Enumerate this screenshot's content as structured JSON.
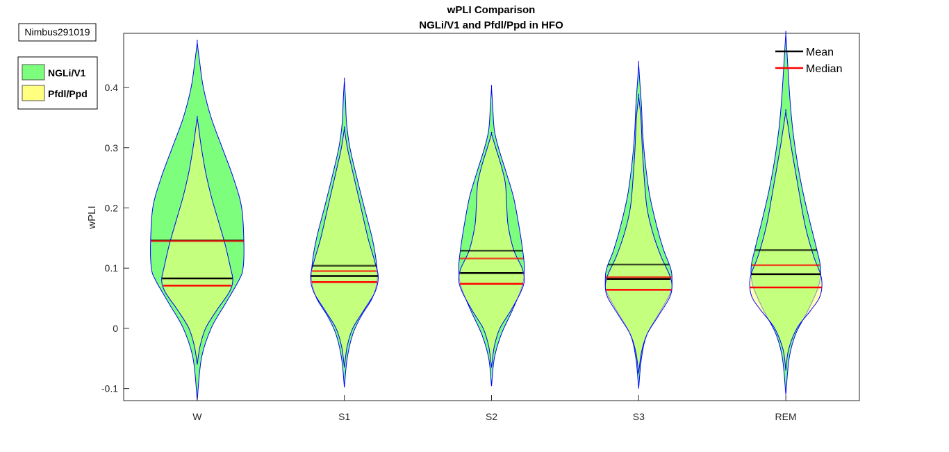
{
  "annotation": {
    "label": "Nimbus291019"
  },
  "group_legend": [
    {
      "label": "NGLi/V1",
      "color": "#7dff7d"
    },
    {
      "label": "Pfdl/Ppd",
      "color": "#ffff80"
    }
  ],
  "stat_legend": [
    {
      "label": "Mean",
      "color": "#000000"
    },
    {
      "label": "Median",
      "color": "#ff0000"
    }
  ],
  "chart_data": {
    "type": "violin",
    "title": "wPLI Comparison",
    "subtitle": "NGLi/V1 and Pfdl/Ppd in HFO",
    "xlabel": "",
    "ylabel": "wPLI",
    "ylim": [
      -0.12,
      0.49
    ],
    "yticks": [
      -0.1,
      0,
      0.1,
      0.2,
      0.3,
      0.4
    ],
    "ytick_labels": [
      "-0.1",
      "0",
      "0.1",
      "0.2",
      "0.3",
      "0.4"
    ],
    "categories": [
      "W",
      "S1",
      "S2",
      "S3",
      "REM"
    ],
    "series": [
      {
        "name": "NGLi/V1",
        "color": "#7dff7d",
        "outline": "#0000ff",
        "mean": [
          0.146,
          0.104,
          0.129,
          0.106,
          0.13
        ],
        "median": [
          0.145,
          0.095,
          0.116,
          0.085,
          0.105
        ],
        "y_range": [
          [
            -0.12,
            0.475
          ],
          [
            -0.098,
            0.412
          ],
          [
            -0.096,
            0.4
          ],
          [
            -0.1,
            0.44
          ],
          [
            -0.11,
            0.49
          ]
        ],
        "profile": [
          [
            [
              -0.12,
              0.0
            ],
            [
              -0.05,
              0.015
            ],
            [
              0.0,
              0.05
            ],
            [
              0.04,
              0.1
            ],
            [
              0.08,
              0.15
            ],
            [
              0.1,
              0.165
            ],
            [
              0.14,
              0.168
            ],
            [
              0.2,
              0.16
            ],
            [
              0.25,
              0.13
            ],
            [
              0.3,
              0.09
            ],
            [
              0.35,
              0.05
            ],
            [
              0.4,
              0.022
            ],
            [
              0.445,
              0.008
            ],
            [
              0.475,
              0.0
            ]
          ],
          [
            [
              -0.098,
              0.0
            ],
            [
              -0.05,
              0.01
            ],
            [
              -0.01,
              0.03
            ],
            [
              0.02,
              0.06
            ],
            [
              0.05,
              0.1
            ],
            [
              0.08,
              0.118
            ],
            [
              0.11,
              0.115
            ],
            [
              0.15,
              0.1
            ],
            [
              0.2,
              0.072
            ],
            [
              0.25,
              0.045
            ],
            [
              0.3,
              0.02
            ],
            [
              0.34,
              0.008
            ],
            [
              0.38,
              0.004
            ],
            [
              0.412,
              0.0
            ]
          ],
          [
            [
              -0.096,
              0.0
            ],
            [
              -0.05,
              0.01
            ],
            [
              -0.01,
              0.035
            ],
            [
              0.03,
              0.075
            ],
            [
              0.07,
              0.11
            ],
            [
              0.1,
              0.118
            ],
            [
              0.13,
              0.112
            ],
            [
              0.18,
              0.095
            ],
            [
              0.22,
              0.078
            ],
            [
              0.26,
              0.052
            ],
            [
              0.3,
              0.025
            ],
            [
              0.33,
              0.01
            ],
            [
              0.37,
              0.004
            ],
            [
              0.4,
              0.0
            ]
          ],
          [
            [
              -0.1,
              0.0
            ],
            [
              -0.05,
              0.01
            ],
            [
              -0.01,
              0.03
            ],
            [
              0.03,
              0.08
            ],
            [
              0.06,
              0.115
            ],
            [
              0.08,
              0.12
            ],
            [
              0.1,
              0.115
            ],
            [
              0.13,
              0.09
            ],
            [
              0.17,
              0.065
            ],
            [
              0.22,
              0.04
            ],
            [
              0.27,
              0.025
            ],
            [
              0.32,
              0.015
            ],
            [
              0.37,
              0.01
            ],
            [
              0.41,
              0.004
            ],
            [
              0.44,
              0.0
            ]
          ],
          [
            [
              -0.11,
              0.0
            ],
            [
              -0.05,
              0.012
            ],
            [
              -0.01,
              0.035
            ],
            [
              0.03,
              0.08
            ],
            [
              0.07,
              0.118
            ],
            [
              0.1,
              0.125
            ],
            [
              0.13,
              0.112
            ],
            [
              0.18,
              0.085
            ],
            [
              0.23,
              0.06
            ],
            [
              0.28,
              0.04
            ],
            [
              0.33,
              0.025
            ],
            [
              0.38,
              0.015
            ],
            [
              0.43,
              0.008
            ],
            [
              0.46,
              0.004
            ],
            [
              0.49,
              0.0
            ]
          ]
        ]
      },
      {
        "name": "Pfdl/Ppd",
        "color": "#ffff80",
        "outline": "#0000ff",
        "mean": [
          0.083,
          0.087,
          0.092,
          0.082,
          0.09
        ],
        "median": [
          0.071,
          0.077,
          0.074,
          0.064,
          0.068
        ],
        "y_range": [
          [
            -0.06,
            0.35
          ],
          [
            -0.065,
            0.332
          ],
          [
            -0.065,
            0.323
          ],
          [
            -0.075,
            0.385
          ],
          [
            -0.07,
            0.36
          ]
        ],
        "profile": [
          [
            [
              -0.06,
              0.0
            ],
            [
              -0.03,
              0.01
            ],
            [
              0.0,
              0.03
            ],
            [
              0.03,
              0.07
            ],
            [
              0.06,
              0.115
            ],
            [
              0.08,
              0.128
            ],
            [
              0.1,
              0.12
            ],
            [
              0.14,
              0.1
            ],
            [
              0.18,
              0.075
            ],
            [
              0.22,
              0.05
            ],
            [
              0.26,
              0.03
            ],
            [
              0.3,
              0.015
            ],
            [
              0.33,
              0.006
            ],
            [
              0.35,
              0.0
            ]
          ],
          [
            [
              -0.065,
              0.0
            ],
            [
              -0.03,
              0.01
            ],
            [
              0.0,
              0.03
            ],
            [
              0.03,
              0.07
            ],
            [
              0.06,
              0.11
            ],
            [
              0.085,
              0.122
            ],
            [
              0.11,
              0.11
            ],
            [
              0.15,
              0.085
            ],
            [
              0.2,
              0.06
            ],
            [
              0.25,
              0.035
            ],
            [
              0.29,
              0.015
            ],
            [
              0.31,
              0.007
            ],
            [
              0.332,
              0.0
            ]
          ],
          [
            [
              -0.065,
              0.0
            ],
            [
              -0.03,
              0.01
            ],
            [
              0.0,
              0.03
            ],
            [
              0.03,
              0.07
            ],
            [
              0.06,
              0.105
            ],
            [
              0.08,
              0.118
            ],
            [
              0.1,
              0.11
            ],
            [
              0.13,
              0.08
            ],
            [
              0.17,
              0.06
            ],
            [
              0.2,
              0.055
            ],
            [
              0.24,
              0.05
            ],
            [
              0.27,
              0.035
            ],
            [
              0.3,
              0.015
            ],
            [
              0.323,
              0.0
            ]
          ],
          [
            [
              -0.075,
              0.0
            ],
            [
              -0.04,
              0.01
            ],
            [
              -0.01,
              0.03
            ],
            [
              0.02,
              0.07
            ],
            [
              0.05,
              0.11
            ],
            [
              0.07,
              0.12
            ],
            [
              0.09,
              0.11
            ],
            [
              0.12,
              0.08
            ],
            [
              0.16,
              0.05
            ],
            [
              0.2,
              0.03
            ],
            [
              0.25,
              0.02
            ],
            [
              0.3,
              0.013
            ],
            [
              0.35,
              0.008
            ],
            [
              0.385,
              0.0
            ]
          ],
          [
            [
              -0.07,
              0.0
            ],
            [
              -0.035,
              0.01
            ],
            [
              0.0,
              0.04
            ],
            [
              0.03,
              0.09
            ],
            [
              0.05,
              0.12
            ],
            [
              0.07,
              0.13
            ],
            [
              0.09,
              0.125
            ],
            [
              0.12,
              0.1
            ],
            [
              0.17,
              0.07
            ],
            [
              0.22,
              0.05
            ],
            [
              0.26,
              0.035
            ],
            [
              0.3,
              0.02
            ],
            [
              0.33,
              0.01
            ],
            [
              0.36,
              0.0
            ]
          ]
        ]
      }
    ]
  }
}
